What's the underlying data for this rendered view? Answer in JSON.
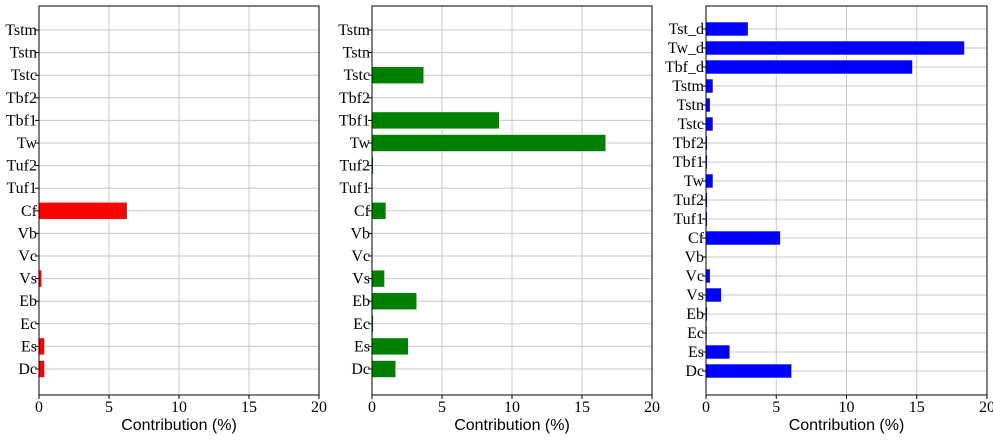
{
  "chart_data": [
    {
      "type": "bar",
      "orientation": "horizontal",
      "color": "#ff0000",
      "categories": [
        "Tstm",
        "Tstn",
        "Tstc",
        "Tbf2",
        "Tbf1",
        "Tw",
        "Tuf2",
        "Tuf1",
        "Cf",
        "Vb",
        "Vc",
        "Vs",
        "Eb",
        "Ec",
        "Es",
        "Dc"
      ],
      "values": [
        0,
        0,
        0,
        0,
        0,
        0,
        0,
        0,
        6.3,
        0,
        0,
        0.2,
        0,
        0,
        0.4,
        0.4
      ],
      "xlabel": "Contribution (%)",
      "xlim": [
        0,
        20
      ],
      "xticks": [
        0,
        5,
        10,
        15,
        20
      ],
      "grid": true
    },
    {
      "type": "bar",
      "orientation": "horizontal",
      "color": "#008000",
      "categories": [
        "Tstm",
        "Tstn",
        "Tstc",
        "Tbf2",
        "Tbf1",
        "Tw",
        "Tuf2",
        "Tuf1",
        "Cf",
        "Vb",
        "Vc",
        "Vs",
        "Eb",
        "Ec",
        "Es",
        "Dc"
      ],
      "values": [
        0,
        0,
        3.7,
        0,
        9.1,
        16.7,
        0.1,
        0,
        1.0,
        0,
        0,
        0.9,
        3.2,
        0.1,
        2.6,
        1.7
      ],
      "xlabel": "Contribution (%)",
      "xlim": [
        0,
        20
      ],
      "xticks": [
        0,
        5,
        10,
        15,
        20
      ],
      "grid": true
    },
    {
      "type": "bar",
      "orientation": "horizontal",
      "color": "#0000ff",
      "categories": [
        "Tst_d",
        "Tw_d",
        "Tbf_d",
        "Tstm",
        "Tstn",
        "Tstc",
        "Tbf2",
        "Tbf1",
        "Tw",
        "Tuf2",
        "Tuf1",
        "Cf",
        "Vb",
        "Vc",
        "Vs",
        "Eb",
        "Ec",
        "Es",
        "Dc"
      ],
      "values": [
        3.0,
        18.4,
        14.7,
        0.5,
        0.3,
        0.5,
        0.1,
        0.1,
        0.5,
        0.1,
        0.1,
        5.3,
        0,
        0.3,
        1.1,
        0.1,
        0.05,
        1.7,
        6.1
      ],
      "xlabel": "Contribution (%)",
      "xlim": [
        0,
        20
      ],
      "xticks": [
        0,
        5,
        10,
        15,
        20
      ],
      "grid": true
    }
  ]
}
